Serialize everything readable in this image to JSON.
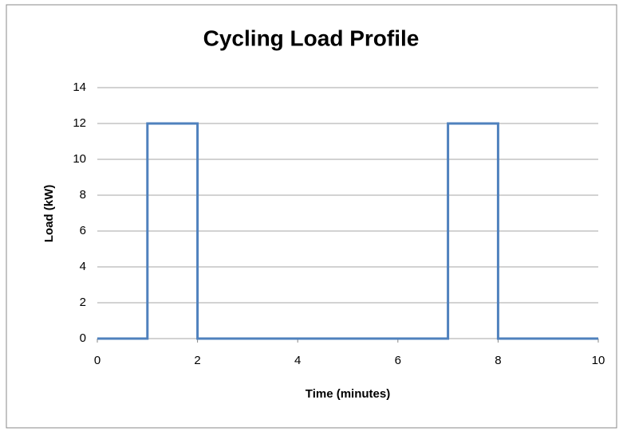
{
  "chart_data": {
    "type": "line",
    "title": "Cycling Load Profile",
    "x_label": "Time (minutes)",
    "y_label": "Load (kW)",
    "x": [
      0,
      1,
      1,
      2,
      2,
      7,
      7,
      8,
      8,
      10
    ],
    "series": [
      {
        "name": "Load",
        "color": "#4f81bd",
        "values": [
          0,
          0,
          12,
          12,
          0,
          0,
          12,
          12,
          0,
          0
        ]
      }
    ],
    "xlim": [
      0,
      10
    ],
    "xticks": [
      0,
      2,
      4,
      6,
      8,
      10
    ],
    "ylim": [
      0,
      14
    ],
    "yticks": [
      0,
      2,
      4,
      6,
      8,
      10,
      12,
      14
    ],
    "grid": true
  }
}
